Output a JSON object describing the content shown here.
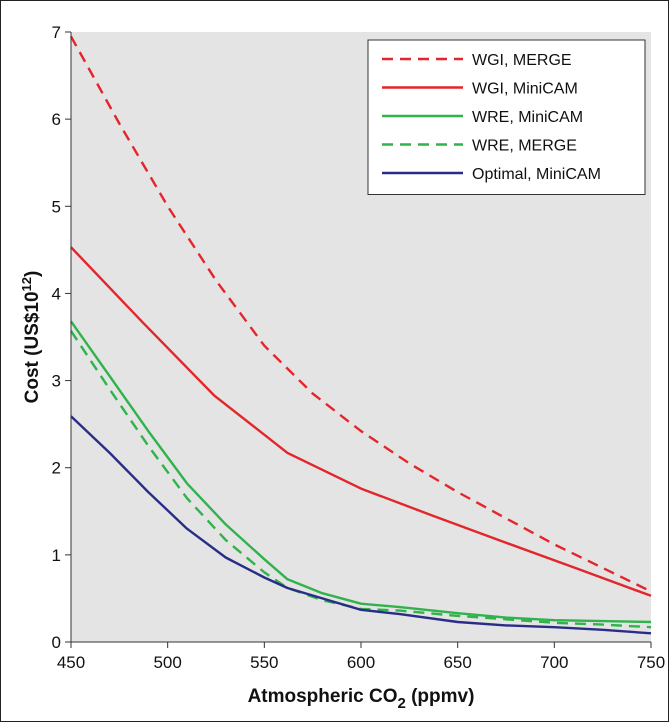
{
  "chart_data": {
    "type": "line",
    "xlabel": "Atmospheric CO",
    "xlabel_sub": "2",
    "xlabel_tail": " (ppmv)",
    "ylabel": "Cost (US$10",
    "ylabel_sup": "12",
    "ylabel_tail": ")",
    "xlim": [
      450,
      750
    ],
    "ylim": [
      0,
      7
    ],
    "xticks": [
      450,
      500,
      550,
      600,
      650,
      700,
      750
    ],
    "yticks": [
      0,
      1,
      2,
      3,
      4,
      5,
      6,
      7
    ],
    "grid": false,
    "legend_position": "top-right",
    "series": [
      {
        "name": "WGI, MERGE",
        "color": "#e3262b",
        "dash": "dashed",
        "x": [
          450,
          475,
          500,
          525,
          550,
          575,
          600,
          625,
          650,
          675,
          700,
          725,
          750
        ],
        "y": [
          6.95,
          5.95,
          5.0,
          4.15,
          3.4,
          2.85,
          2.42,
          2.05,
          1.72,
          1.42,
          1.12,
          0.85,
          0.58
        ]
      },
      {
        "name": "WGI, MiniCAM",
        "color": "#e3262b",
        "dash": "solid",
        "x": [
          450,
          487,
          524,
          562,
          600,
          637,
          675,
          712,
          750
        ],
        "y": [
          4.53,
          3.67,
          2.83,
          2.17,
          1.76,
          1.45,
          1.14,
          0.84,
          0.53
        ]
      },
      {
        "name": "WRE, MiniCAM",
        "color": "#2fb34a",
        "dash": "solid",
        "x": [
          450,
          470,
          490,
          510,
          530,
          550,
          562,
          580,
          600,
          620,
          650,
          675,
          700,
          725,
          750
        ],
        "y": [
          3.68,
          3.05,
          2.42,
          1.82,
          1.35,
          0.95,
          0.72,
          0.56,
          0.44,
          0.4,
          0.33,
          0.28,
          0.25,
          0.24,
          0.23
        ]
      },
      {
        "name": "WRE, MERGE",
        "color": "#2fb34a",
        "dash": "dashed",
        "x": [
          450,
          470,
          490,
          510,
          530,
          550,
          562,
          580,
          600,
          620,
          650,
          675,
          700,
          725,
          750
        ],
        "y": [
          3.57,
          2.9,
          2.25,
          1.65,
          1.17,
          0.8,
          0.62,
          0.48,
          0.38,
          0.36,
          0.3,
          0.26,
          0.22,
          0.2,
          0.17
        ]
      },
      {
        "name": "Optimal, MiniCAM",
        "color": "#2a2d86",
        "dash": "solid",
        "x": [
          450,
          470,
          490,
          510,
          530,
          550,
          562,
          580,
          600,
          620,
          650,
          675,
          700,
          725,
          750
        ],
        "y": [
          2.59,
          2.17,
          1.72,
          1.3,
          0.97,
          0.74,
          0.62,
          0.5,
          0.37,
          0.32,
          0.23,
          0.19,
          0.17,
          0.14,
          0.1
        ]
      }
    ]
  }
}
